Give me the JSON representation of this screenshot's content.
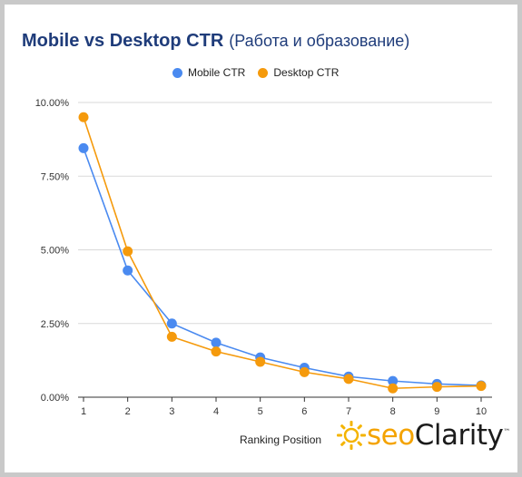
{
  "title": {
    "main": "Mobile vs Desktop CTR",
    "sub": "(Работа и образование)"
  },
  "colors": {
    "mobile": "#4a8af0",
    "desktop": "#f59a0c",
    "title": "#1f3c7a"
  },
  "logo": {
    "seo": "seo",
    "clarity": "Clarity",
    "tm": "™",
    "icon": "sun-gear-icon"
  },
  "chart_data": {
    "type": "line",
    "x": [
      1,
      2,
      3,
      4,
      5,
      6,
      7,
      8,
      9,
      10
    ],
    "xlabel": "Ranking Position",
    "ylabel": "",
    "ylim": [
      0,
      10
    ],
    "yticks": [
      "0.00%",
      "2.50%",
      "5.00%",
      "7.50%",
      "10.00%"
    ],
    "ytick_values": [
      0,
      2.5,
      5,
      7.5,
      10
    ],
    "grid": true,
    "legend_position": "top",
    "series": [
      {
        "name": "Mobile CTR",
        "color": "#4a8af0",
        "values": [
          8.45,
          4.3,
          2.5,
          1.85,
          1.35,
          1.0,
          0.7,
          0.55,
          0.45,
          0.4
        ]
      },
      {
        "name": "Desktop CTR",
        "color": "#f59a0c",
        "values": [
          9.5,
          4.95,
          2.05,
          1.55,
          1.2,
          0.85,
          0.62,
          0.3,
          0.35,
          0.38
        ]
      }
    ]
  }
}
